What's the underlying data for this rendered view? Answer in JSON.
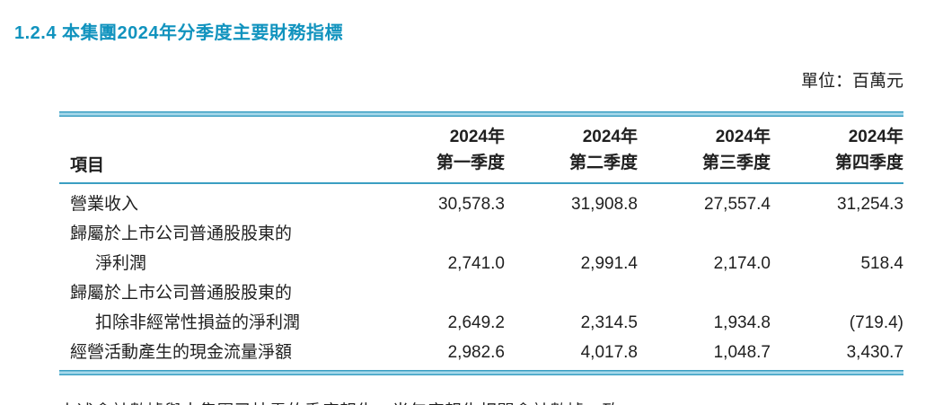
{
  "page": {
    "heading": "1.2.4 本集團2024年分季度主要財務指標",
    "unit_label": "單位：百萬元",
    "footnote": "上述會計數據與本集團已披露的季度報告、半年度報告相關會計數據一致。"
  },
  "colors": {
    "heading": "#1193BE",
    "rule_dark": "#3A9EC2",
    "rule_light": "#A7D9EB",
    "text": "#1F1F1F"
  },
  "table": {
    "header": {
      "item_col": "項目",
      "quarters": [
        {
          "line1": "2024年",
          "line2": "第一季度"
        },
        {
          "line1": "2024年",
          "line2": "第二季度"
        },
        {
          "line1": "2024年",
          "line2": "第三季度"
        },
        {
          "line1": "2024年",
          "line2": "第四季度"
        }
      ]
    },
    "rows": [
      {
        "label_lines": [
          "營業收入"
        ],
        "values": [
          "30,578.3",
          "31,908.8",
          "27,557.4",
          "31,254.3"
        ]
      },
      {
        "label_lines": [
          "歸屬於上市公司普通股股東的",
          "淨利潤"
        ],
        "values": [
          "2,741.0",
          "2,991.4",
          "2,174.0",
          "518.4"
        ]
      },
      {
        "label_lines": [
          "歸屬於上市公司普通股股東的",
          "扣除非經常性損益的淨利潤"
        ],
        "values": [
          "2,649.2",
          "2,314.5",
          "1,934.8",
          "(719.4)"
        ]
      },
      {
        "label_lines": [
          "經營活動產生的現金流量淨額"
        ],
        "values": [
          "2,982.6",
          "4,017.8",
          "1,048.7",
          "3,430.7"
        ]
      }
    ]
  },
  "chart_data": {
    "type": "table",
    "title": "1.2.4 本集團2024年分季度主要財務指標",
    "unit": "百萬元",
    "categories": [
      "2024年第一季度",
      "2024年第二季度",
      "2024年第三季度",
      "2024年第四季度"
    ],
    "series": [
      {
        "name": "營業收入",
        "values": [
          30578.3,
          31908.8,
          27557.4,
          31254.3
        ]
      },
      {
        "name": "歸屬於上市公司普通股股東的淨利潤",
        "values": [
          2741.0,
          2991.4,
          2174.0,
          518.4
        ]
      },
      {
        "name": "歸屬於上市公司普通股股東的扣除非經常性損益的淨利潤",
        "values": [
          2649.2,
          2314.5,
          1934.8,
          -719.4
        ]
      },
      {
        "name": "經營活動產生的現金流量淨額",
        "values": [
          2982.6,
          4017.8,
          1048.7,
          3430.7
        ]
      }
    ]
  }
}
